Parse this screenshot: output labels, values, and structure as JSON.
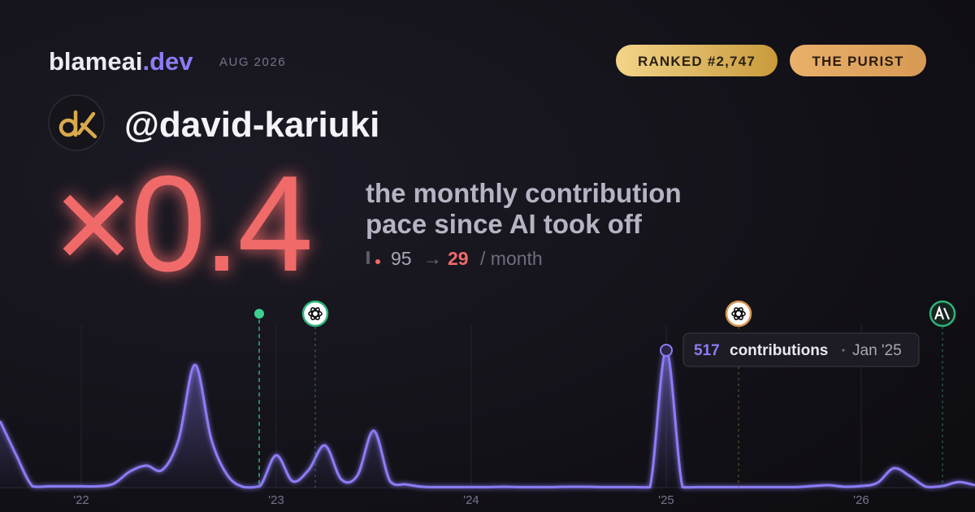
{
  "header": {
    "brand": "blameai",
    "brand_suffix": ".dev",
    "period": "AUG 2026",
    "badges": [
      "RANKED #2,747",
      "THE PURIST"
    ]
  },
  "profile": {
    "handle": "@david-kariuki"
  },
  "headline": {
    "multiplier": "×0.4",
    "caption_lines": [
      "the monthly contribution",
      "pace since AI took off"
    ],
    "pace": {
      "before": 95,
      "arrow": "→",
      "after": 29,
      "unit": "/ month"
    }
  },
  "chart_data": {
    "type": "line",
    "x": [
      "2021-08",
      "2021-09",
      "2021-10",
      "2021-11",
      "2021-12",
      "2022-01",
      "2022-02",
      "2022-03",
      "2022-04",
      "2022-05",
      "2022-06",
      "2022-07",
      "2022-08",
      "2022-09",
      "2022-10",
      "2022-11",
      "2022-12",
      "2023-01",
      "2023-02",
      "2023-03",
      "2023-04",
      "2023-05",
      "2023-06",
      "2023-07",
      "2023-08",
      "2023-09",
      "2023-10",
      "2023-11",
      "2023-12",
      "2024-01",
      "2024-02",
      "2024-03",
      "2024-04",
      "2024-05",
      "2024-06",
      "2024-07",
      "2024-08",
      "2024-09",
      "2024-10",
      "2024-11",
      "2024-12",
      "2025-01",
      "2025-02",
      "2025-03",
      "2025-04",
      "2025-05",
      "2025-06",
      "2025-07",
      "2025-08",
      "2025-09",
      "2025-10",
      "2025-11",
      "2025-12",
      "2026-01",
      "2026-02",
      "2026-03",
      "2026-04",
      "2026-05",
      "2026-06",
      "2026-07",
      "2026-08"
    ],
    "series": [
      {
        "name": "contributions",
        "color": "#8b7cf6",
        "values": [
          251,
          122,
          5,
          5,
          5,
          5,
          5,
          15,
          61,
          83,
          67,
          183,
          462,
          183,
          46,
          2,
          6,
          122,
          24,
          67,
          159,
          31,
          46,
          214,
          24,
          12,
          3,
          2,
          2,
          2,
          2,
          3,
          2,
          2,
          2,
          3,
          3,
          2,
          2,
          2,
          2,
          517,
          2,
          2,
          2,
          2,
          2,
          2,
          2,
          2,
          6,
          9,
          3,
          6,
          18,
          73,
          43,
          3,
          6,
          21,
          9
        ]
      }
    ],
    "xlim": [
      "2021-08",
      "2026-08"
    ],
    "xticks": [
      {
        "value": "2022-01",
        "label": "'22"
      },
      {
        "value": "2023-01",
        "label": "'23"
      },
      {
        "value": "2024-01",
        "label": "'24"
      },
      {
        "value": "2025-01",
        "label": "'25"
      },
      {
        "value": "2026-01",
        "label": "'26"
      }
    ],
    "grid": true,
    "tooltip": {
      "index": 41,
      "text": "contributions",
      "date": "Jan '25"
    }
  }
}
